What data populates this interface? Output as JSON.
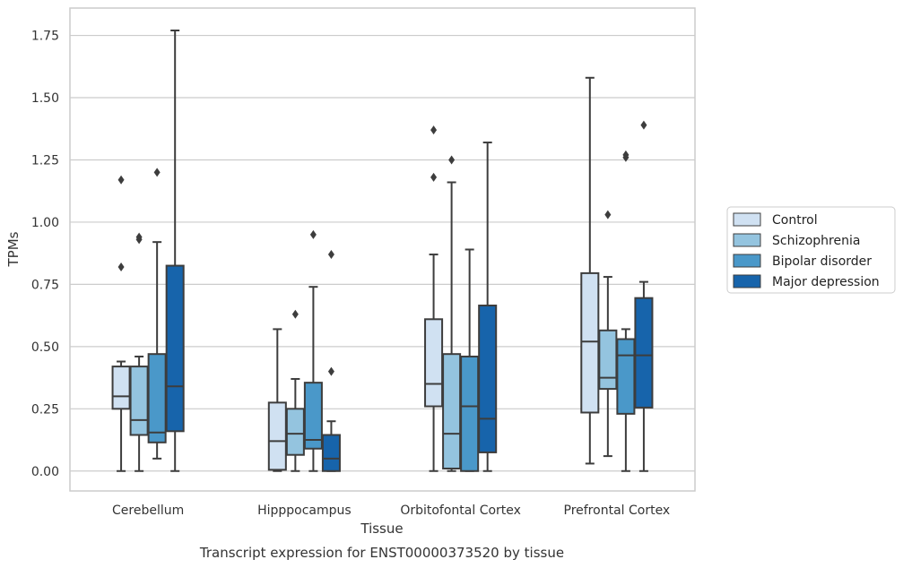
{
  "caption": "Transcript expression for ENST00000373520 by tissue",
  "chart_data": {
    "type": "boxplot",
    "xlabel": "Tissue",
    "ylabel": "TPMs",
    "ylim": [
      -0.08,
      1.86
    ],
    "yticks": [
      0.0,
      0.25,
      0.5,
      0.75,
      1.0,
      1.25,
      1.5,
      1.75
    ],
    "ytick_labels": [
      "0.00",
      "0.25",
      "0.50",
      "0.75",
      "1.00",
      "1.25",
      "1.50",
      "1.75"
    ],
    "grid": "horizontal",
    "legend_position": "right",
    "categories": [
      "Cerebellum",
      "Hipppocampus",
      "Orbitofontal Cortex",
      "Prefrontal Cortex"
    ],
    "series": [
      {
        "name": "Control",
        "color": "#d0e1f2",
        "boxes": [
          {
            "whisker_low": 0.0,
            "q1": 0.25,
            "median": 0.3,
            "q3": 0.42,
            "whisker_high": 0.44,
            "outliers": [
              0.82,
              1.17
            ]
          },
          {
            "whisker_low": 0.0,
            "q1": 0.005,
            "median": 0.12,
            "q3": 0.275,
            "whisker_high": 0.57,
            "outliers": []
          },
          {
            "whisker_low": 0.0,
            "q1": 0.26,
            "median": 0.35,
            "q3": 0.61,
            "whisker_high": 0.87,
            "outliers": [
              1.18,
              1.37
            ]
          },
          {
            "whisker_low": 0.03,
            "q1": 0.235,
            "median": 0.52,
            "q3": 0.795,
            "whisker_high": 1.58,
            "outliers": []
          }
        ]
      },
      {
        "name": "Schizophrenia",
        "color": "#94c4df",
        "boxes": [
          {
            "whisker_low": 0.0,
            "q1": 0.145,
            "median": 0.205,
            "q3": 0.42,
            "whisker_high": 0.46,
            "outliers": [
              0.93,
              0.94
            ]
          },
          {
            "whisker_low": 0.0,
            "q1": 0.065,
            "median": 0.15,
            "q3": 0.25,
            "whisker_high": 0.37,
            "outliers": [
              0.63
            ]
          },
          {
            "whisker_low": 0.0,
            "q1": 0.01,
            "median": 0.15,
            "q3": 0.47,
            "whisker_high": 1.16,
            "outliers": [
              1.25
            ]
          },
          {
            "whisker_low": 0.06,
            "q1": 0.33,
            "median": 0.375,
            "q3": 0.565,
            "whisker_high": 0.78,
            "outliers": [
              1.03
            ]
          }
        ]
      },
      {
        "name": "Bipolar disorder",
        "color": "#4a98c9",
        "boxes": [
          {
            "whisker_low": 0.05,
            "q1": 0.115,
            "median": 0.155,
            "q3": 0.47,
            "whisker_high": 0.92,
            "outliers": [
              1.2
            ]
          },
          {
            "whisker_low": 0.0,
            "q1": 0.09,
            "median": 0.125,
            "q3": 0.355,
            "whisker_high": 0.74,
            "outliers": [
              0.95
            ]
          },
          {
            "whisker_low": 0.0,
            "q1": 0.0,
            "median": 0.26,
            "q3": 0.46,
            "whisker_high": 0.89,
            "outliers": []
          },
          {
            "whisker_low": 0.0,
            "q1": 0.23,
            "median": 0.465,
            "q3": 0.53,
            "whisker_high": 0.57,
            "outliers": [
              1.26,
              1.27
            ]
          }
        ]
      },
      {
        "name": "Major depression",
        "color": "#1764ab",
        "boxes": [
          {
            "whisker_low": 0.0,
            "q1": 0.16,
            "median": 0.34,
            "q3": 0.825,
            "whisker_high": 1.77,
            "outliers": []
          },
          {
            "whisker_low": 0.0,
            "q1": 0.0,
            "median": 0.05,
            "q3": 0.145,
            "whisker_high": 0.2,
            "outliers": [
              0.4,
              0.87
            ]
          },
          {
            "whisker_low": 0.0,
            "q1": 0.075,
            "median": 0.21,
            "q3": 0.665,
            "whisker_high": 1.32,
            "outliers": []
          },
          {
            "whisker_low": 0.0,
            "q1": 0.255,
            "median": 0.465,
            "q3": 0.695,
            "whisker_high": 0.76,
            "outliers": [
              1.39
            ]
          }
        ]
      }
    ]
  }
}
